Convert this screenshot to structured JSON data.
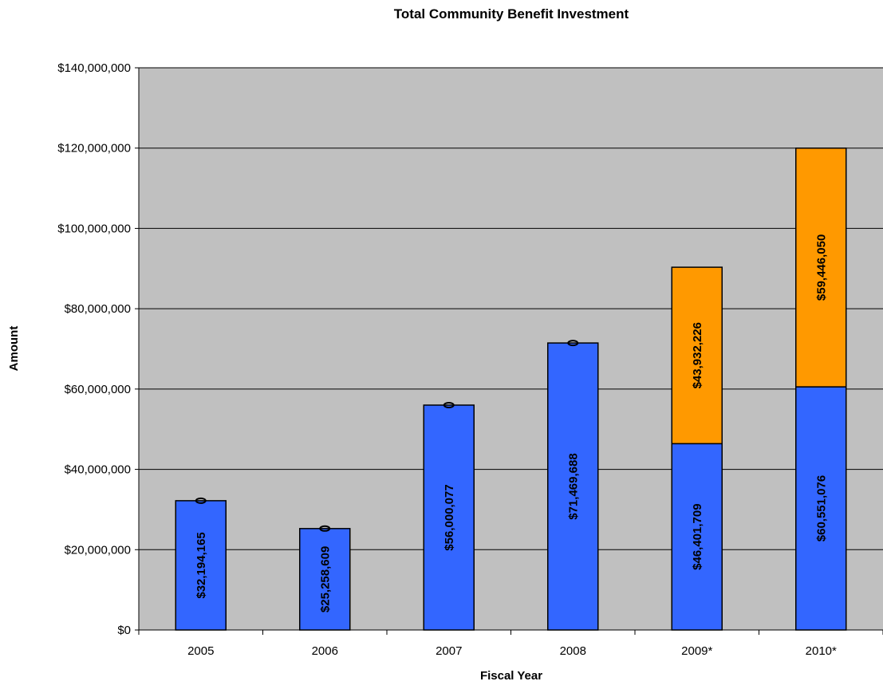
{
  "chart_data": {
    "type": "bar",
    "stacked": true,
    "title": "Total Community Benefit Investment",
    "xlabel": "Fiscal Year",
    "ylabel": "Amount",
    "categories": [
      "2005",
      "2006",
      "2007",
      "2008",
      "2009*",
      "2010*"
    ],
    "series": [
      {
        "color": "#3366ff",
        "values": [
          32194165,
          25258609,
          56000077,
          71469688,
          46401709,
          60551076
        ],
        "labels": [
          "$32,194,165",
          "$25,258,609",
          "$56,000,077",
          "$71,469,688",
          "$46,401,709",
          "$60,551,076"
        ]
      },
      {
        "color": "#ff9900",
        "values": [
          null,
          null,
          null,
          null,
          43932226,
          59446050
        ],
        "labels": [
          "",
          "",
          "",
          "",
          "$43,932,226",
          "$59,446,050"
        ]
      }
    ],
    "ylim": [
      0,
      140000000
    ],
    "yticks": [
      0,
      20000000,
      40000000,
      60000000,
      80000000,
      100000000,
      120000000,
      140000000
    ],
    "ytick_labels": [
      "$0",
      "$20,000,000",
      "$40,000,000",
      "$60,000,000",
      "$80,000,000",
      "$100,000,000",
      "$120,000,000",
      "$140,000,000"
    ],
    "grid": true,
    "legend": "none",
    "plot_background": "#c0c0c0"
  }
}
